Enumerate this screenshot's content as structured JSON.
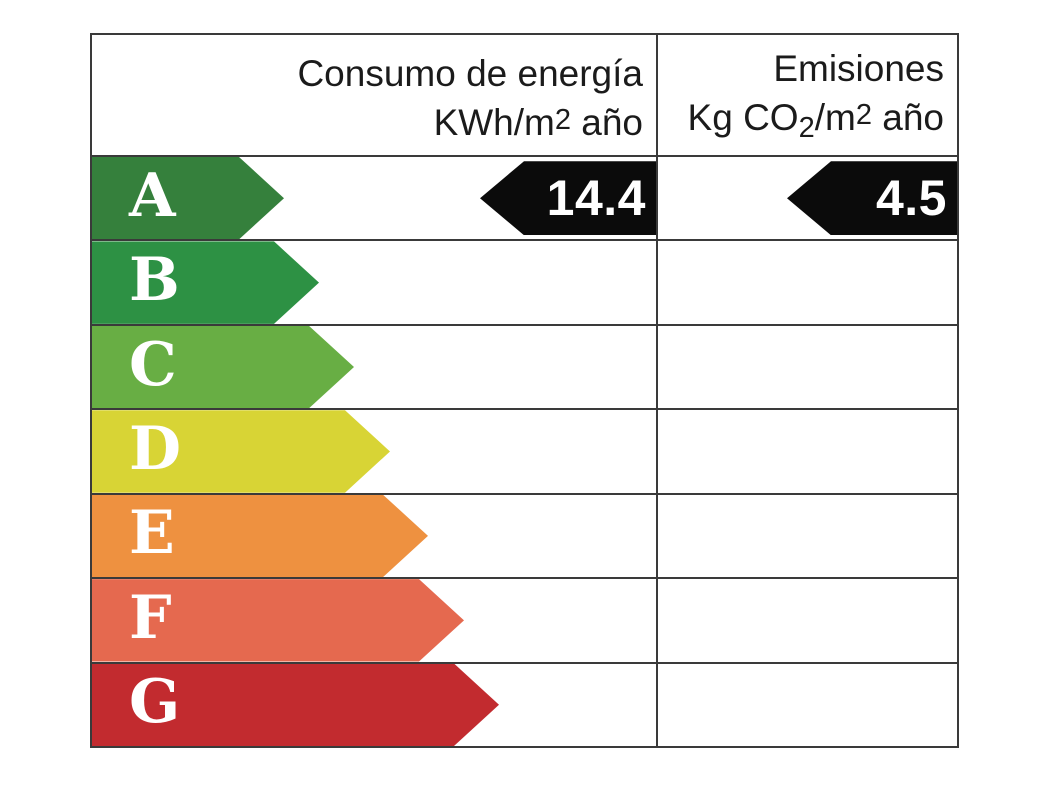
{
  "header": {
    "consumption_line1": "Consumo de energía",
    "consumption_line2_prefix": "KWh/m",
    "consumption_line2_exp": "2",
    "consumption_line2_suffix": " año",
    "emissions_line1": "Emisiones",
    "emissions_line2_prefix": "Kg CO",
    "emissions_line2_sub": "2",
    "emissions_line2_mid": "/m",
    "emissions_line2_exp": "2",
    "emissions_line2_suffix": " año"
  },
  "ratings": [
    {
      "letter": "A",
      "color": "#35803C",
      "arrow_width": 192
    },
    {
      "letter": "B",
      "color": "#2D9144",
      "arrow_width": 227
    },
    {
      "letter": "C",
      "color": "#68AE44",
      "arrow_width": 262
    },
    {
      "letter": "D",
      "color": "#D8D435",
      "arrow_width": 298
    },
    {
      "letter": "E",
      "color": "#EE9140",
      "arrow_width": 336
    },
    {
      "letter": "F",
      "color": "#E5694F",
      "arrow_width": 372
    },
    {
      "letter": "G",
      "color": "#C22B2F",
      "arrow_width": 407
    }
  ],
  "current_rating": {
    "letter": "A",
    "consumption_value": "14.4",
    "emissions_value": "4.5",
    "arrow_color": "#0b0b0b",
    "text_color": "#ffffff"
  },
  "colors": {
    "border": "#3a3a3a",
    "background": "#ffffff",
    "header_text": "#1b1b1b"
  },
  "chart_data": {
    "type": "table",
    "columns": [
      "Consumo de energía KWh/m2 año",
      "Emisiones Kg CO2/m2 año"
    ],
    "rating_scale": [
      "A",
      "B",
      "C",
      "D",
      "E",
      "F",
      "G"
    ],
    "selected_rating": "A",
    "consumption_kwh_m2_yr": 14.4,
    "emissions_kg_co2_m2_yr": 4.5,
    "legend_position": "none",
    "grid": true
  }
}
